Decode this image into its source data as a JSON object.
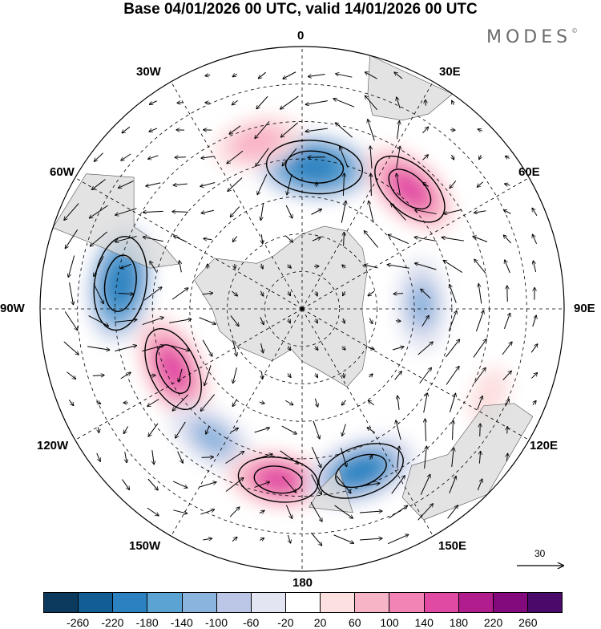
{
  "title": "Base 04/01/2026 00 UTC, valid 14/01/2026 00 UTC",
  "brand": "MODES",
  "brand_mark": "©",
  "longitude_labels": {
    "north": "0",
    "east30": "30E",
    "west30": "30W",
    "east60": "60E",
    "west60": "60W",
    "east90": "90E",
    "west90": "90W",
    "east120": "120E",
    "west120": "120W",
    "east150": "150E",
    "west150": "150W",
    "south": "180"
  },
  "reference_vector": "30",
  "colorbar": {
    "labels": [
      "-260",
      "-220",
      "-180",
      "-140",
      "-100",
      "-60",
      "-20",
      "20",
      "60",
      "100",
      "140",
      "180",
      "220",
      "260"
    ],
    "colors": [
      "#0b3a5e",
      "#125d94",
      "#2c82c0",
      "#5aa3d3",
      "#8ab4dd",
      "#bcc6e6",
      "#e3e5f2",
      "#ffffff",
      "#fde0e0",
      "#f8b4c7",
      "#f184b4",
      "#e04aa3",
      "#b11d8c",
      "#820a7c",
      "#4b0a6a"
    ]
  },
  "anomaly_centers": [
    {
      "label": "neg",
      "lon_deg": 5,
      "lat_deg": -52,
      "value": -240
    },
    {
      "label": "pos",
      "lon_deg": 42,
      "lat_deg": -47,
      "value": 180
    },
    {
      "label": "neg",
      "lon_deg": 88,
      "lat_deg": -58,
      "value": -120
    },
    {
      "label": "neg",
      "lon_deg": -82,
      "lat_deg": -41,
      "value": -230
    },
    {
      "label": "pos",
      "lon_deg": -115,
      "lat_deg": -52,
      "value": 190
    },
    {
      "label": "neg",
      "lon_deg": -145,
      "lat_deg": -48,
      "value": -130
    },
    {
      "label": "pos",
      "lon_deg": -172,
      "lat_deg": -44,
      "value": 160
    },
    {
      "label": "neg",
      "lon_deg": 160,
      "lat_deg": -44,
      "value": -200
    },
    {
      "label": "pos",
      "lon_deg": -15,
      "lat_deg": -44,
      "value": 110
    },
    {
      "label": "pos",
      "lon_deg": 115,
      "lat_deg": -35,
      "value": 60
    }
  ]
}
